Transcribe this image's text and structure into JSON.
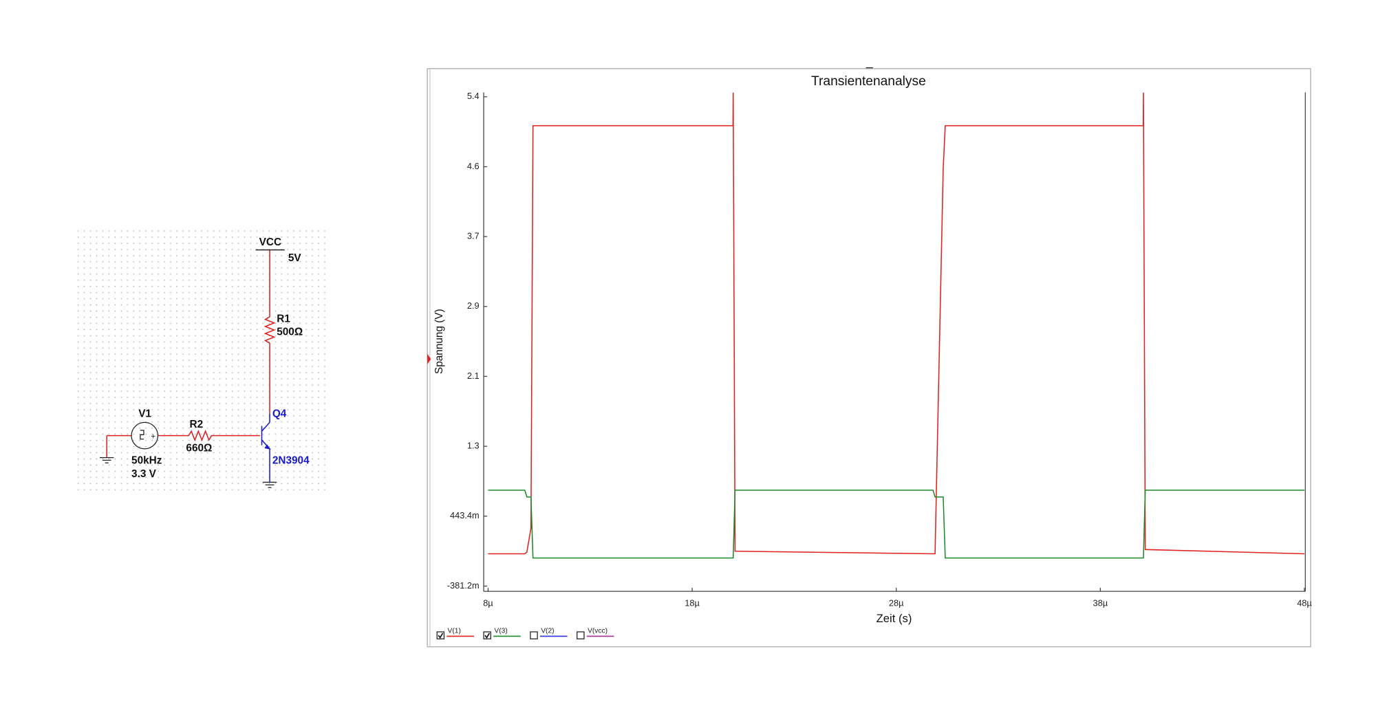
{
  "circuit": {
    "vcc_label": "VCC",
    "vcc_value": "5V",
    "r1_name": "R1",
    "r1_value": "500Ω",
    "q_name": "Q4",
    "q_model": "2N3904",
    "v1_name": "V1",
    "v1_freq": "50kHz",
    "v1_amp": "3.3 V",
    "r2_name": "R2",
    "r2_value": "660Ω"
  },
  "chart_data": {
    "type": "line",
    "title": "Transientenanalyse",
    "xlabel": "Zeit (s)",
    "ylabel": "Spannung (V)",
    "x": [
      8e-06,
      9.8e-06,
      9.9e-06,
      1.01e-05,
      1.02e-05,
      2e-05,
      2.001e-05,
      2.01e-05,
      2.98e-05,
      2.99e-05,
      3.03e-05,
      3.04e-05,
      4.01e-05,
      4.011e-05,
      4.02e-05,
      4.8e-05
    ],
    "series": [
      {
        "name": "V(1)",
        "color": "#e02020",
        "checked": true,
        "values": [
          0.0,
          0.0,
          0.02,
          0.3,
          5.05,
          5.05,
          5.44,
          0.03,
          0.0,
          0.0,
          4.55,
          5.05,
          5.05,
          5.44,
          0.05,
          0.0
        ]
      },
      {
        "name": "V(3)",
        "color": "#1a8a2a",
        "checked": true,
        "values": [
          0.75,
          0.75,
          0.67,
          0.67,
          -0.05,
          -0.05,
          -0.05,
          0.75,
          0.75,
          0.67,
          0.67,
          -0.05,
          -0.05,
          -0.05,
          0.75,
          0.75
        ]
      }
    ],
    "unchecked_series": [
      {
        "name": "V(2)",
        "color": "#3030e0",
        "checked": false
      },
      {
        "name": "V(vcc)",
        "color": "#a03090",
        "checked": false
      }
    ],
    "xlim": [
      8e-06,
      4.8e-05
    ],
    "xticks": [
      {
        "value": 8e-06,
        "label": "8µ"
      },
      {
        "value": 1.8e-05,
        "label": "18µ"
      },
      {
        "value": 2.8e-05,
        "label": "28µ"
      },
      {
        "value": 3.8e-05,
        "label": "38µ"
      },
      {
        "value": 4.8e-05,
        "label": "48µ"
      }
    ],
    "ylim": [
      -0.3812,
      5.391
    ],
    "yticks": [
      {
        "value": -0.3812,
        "label": "-381.2m"
      },
      {
        "value": 0.4434,
        "label": "443.4m"
      },
      {
        "value": 1.268,
        "label": "1.3"
      },
      {
        "value": 2.093,
        "label": "2.1"
      },
      {
        "value": 2.917,
        "label": "2.9"
      },
      {
        "value": 3.742,
        "label": "3.7"
      },
      {
        "value": 4.566,
        "label": "4.6"
      },
      {
        "value": 5.391,
        "label": "5.4"
      }
    ],
    "grid": false
  }
}
